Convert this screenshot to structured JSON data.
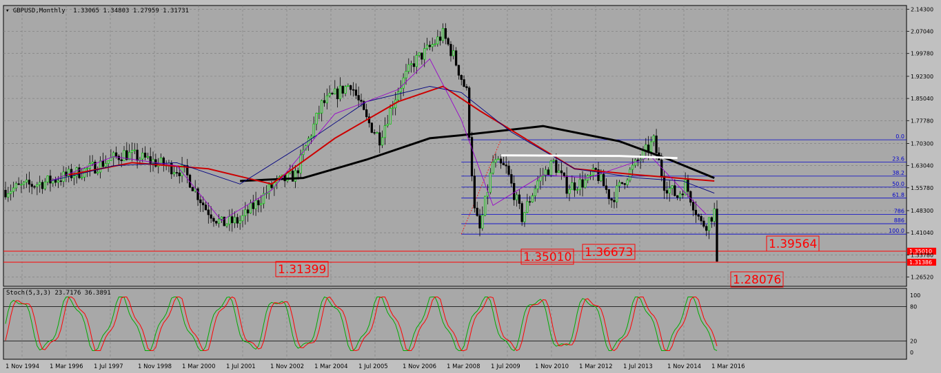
{
  "window": {
    "title": "GBPUSD,Monthly",
    "ohlc": "1.33065 1.34803 1.27959 1.31731"
  },
  "colors": {
    "panel_bg": "#a8a8a8",
    "frame": "#000000",
    "grid": "#7a7a7a",
    "bull": "#00cc00",
    "bear": "#000000",
    "ma_purple": "#9900cc",
    "ma_navy": "#000080",
    "ma_red": "#cc0000",
    "ma_black": "#000000",
    "ma_white": "#ffffff",
    "fib": "#0000cc",
    "hline": "#ff0000",
    "label_box": "#ff0000",
    "stoch_main": "#00aa00",
    "stoch_signal": "#ff0000"
  },
  "price_axis": {
    "ticks": [
      "2.14300",
      "2.07040",
      "1.99780",
      "1.92300",
      "1.85040",
      "1.77780",
      "1.70300",
      "1.63040",
      "1.55780",
      "1.48300",
      "1.41040",
      "1.33780",
      "1.26520"
    ]
  },
  "time_axis": {
    "labels": [
      "1 Nov 1994",
      "1 Mar 1996",
      "1 Jul 1997",
      "1 Nov 1998",
      "1 Mar 2000",
      "1 Jul 2001",
      "1 Nov 2002",
      "1 Mar 2004",
      "1 Jul 2005",
      "1 Nov 2006",
      "1 Mar 2008",
      "1 Jul 2009",
      "1 Nov 2010",
      "1 Mar 2012",
      "1 Jul 2013",
      "1 Nov 2014",
      "1 Mar 2016"
    ]
  },
  "fibonacci": {
    "levels": [
      {
        "label": "0.0",
        "price": 1.715
      },
      {
        "label": "23.6",
        "price": 1.642
      },
      {
        "label": "38.2",
        "price": 1.596
      },
      {
        "label": "50.0",
        "price": 1.56
      },
      {
        "label": "61.8",
        "price": 1.524
      },
      {
        "label": "786",
        "price": 1.471
      },
      {
        "label": "886",
        "price": 1.44
      },
      {
        "label": "100.0",
        "price": 1.406
      }
    ]
  },
  "horizontal_lines": [
    {
      "price": 1.3501,
      "axis_tag": "1.35010"
    },
    {
      "price": 1.31386,
      "axis_tag": "1.31386"
    }
  ],
  "price_labels": [
    "1.31399",
    "1.35010",
    "1.36673",
    "1.39564",
    "1.28076"
  ],
  "stochastic": {
    "title": "Stoch(5,3,3) 23.7176 36.3891",
    "axis": [
      "100",
      "80",
      "20",
      "0"
    ]
  },
  "chart_data": {
    "type": "candlestick",
    "title": "GBPUSD,Monthly",
    "x_range": [
      "1994-01",
      "2016-07"
    ],
    "ylim": [
      1.235,
      2.155
    ],
    "series": [
      {
        "name": "close_path",
        "x": [
          "1994-01",
          "1995-06",
          "1996-09",
          "1997-10",
          "1998-07",
          "1999-09",
          "2000-05",
          "2000-11",
          "2001-06",
          "2002-07",
          "2003-03",
          "2004-01",
          "2004-12",
          "2005-06",
          "2005-11",
          "2006-06",
          "2006-12",
          "2007-04",
          "2007-11",
          "2008-03",
          "2008-08",
          "2008-11",
          "2009-01",
          "2009-06",
          "2009-11",
          "2010-05",
          "2010-11",
          "2011-05",
          "2011-10",
          "2012-06",
          "2012-09",
          "2013-03",
          "2013-09",
          "2014-07",
          "2014-11",
          "2015-04",
          "2015-07",
          "2016-01",
          "2016-03",
          "2016-06",
          "2016-07"
        ],
        "values": [
          1.55,
          1.58,
          1.62,
          1.67,
          1.65,
          1.61,
          1.49,
          1.44,
          1.45,
          1.57,
          1.6,
          1.83,
          1.9,
          1.78,
          1.72,
          1.88,
          1.97,
          2.0,
          2.06,
          1.99,
          1.87,
          1.48,
          1.42,
          1.64,
          1.62,
          1.46,
          1.58,
          1.64,
          1.56,
          1.58,
          1.61,
          1.52,
          1.6,
          1.71,
          1.57,
          1.53,
          1.57,
          1.44,
          1.44,
          1.48,
          1.317
        ]
      },
      {
        "name": "MA black",
        "x": [
          "2001-06",
          "2003-06",
          "2005-06",
          "2007-06",
          "2008-06",
          "2011-01",
          "2013-06",
          "2015-01",
          "2016-06"
        ],
        "values": [
          1.58,
          1.59,
          1.65,
          1.72,
          1.73,
          1.76,
          1.71,
          1.65,
          1.59
        ]
      },
      {
        "name": "MA red",
        "x": [
          "1996-01",
          "1998-01",
          "2000-06",
          "2002-06",
          "2004-06",
          "2006-06",
          "2007-11",
          "2009-01",
          "2010-06",
          "2012-01",
          "2014-01",
          "2016-06"
        ],
        "values": [
          1.6,
          1.64,
          1.62,
          1.57,
          1.72,
          1.84,
          1.89,
          1.81,
          1.72,
          1.62,
          1.6,
          1.58
        ]
      },
      {
        "name": "MA navy",
        "x": [
          "1995-06",
          "1997-06",
          "1999-06",
          "2001-06",
          "2003-06",
          "2005-06",
          "2007-06",
          "2008-06",
          "2010-01",
          "2012-01",
          "2014-01",
          "2015-06",
          "2016-06"
        ],
        "values": [
          1.58,
          1.63,
          1.64,
          1.57,
          1.7,
          1.84,
          1.89,
          1.87,
          1.74,
          1.62,
          1.59,
          1.58,
          1.54
        ]
      },
      {
        "name": "MA purple",
        "x": [
          "1995-06",
          "1997-06",
          "1999-06",
          "2000-11",
          "2002-06",
          "2004-06",
          "2006-06",
          "2007-06",
          "2008-06",
          "2009-06",
          "2011-01",
          "2012-06",
          "2014-06",
          "2015-06",
          "2016-03"
        ],
        "values": [
          1.58,
          1.66,
          1.63,
          1.45,
          1.55,
          1.8,
          1.88,
          1.98,
          1.78,
          1.5,
          1.6,
          1.59,
          1.66,
          1.55,
          1.47
        ]
      }
    ]
  }
}
